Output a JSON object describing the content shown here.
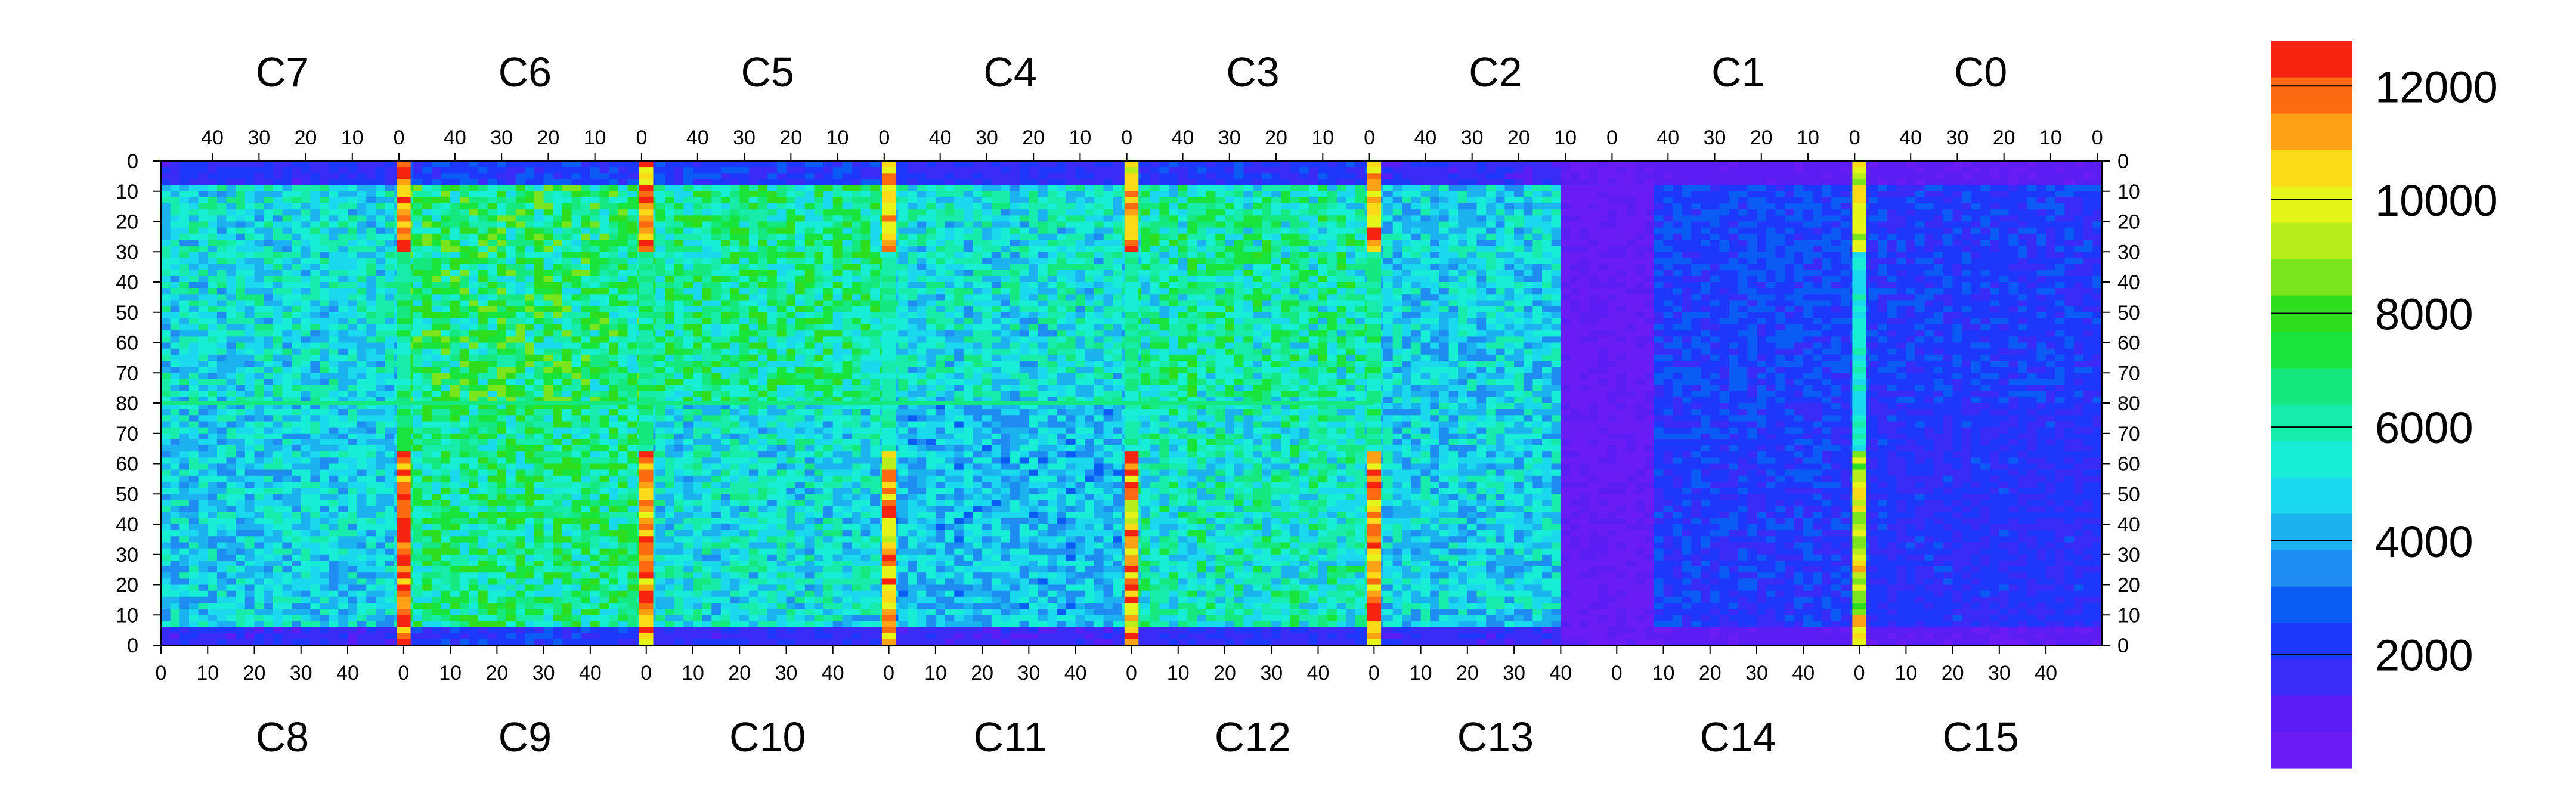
{
  "chart_data": {
    "type": "heatmap",
    "title": "",
    "top_chip_labels": [
      "C7",
      "C6",
      "C5",
      "C4",
      "C3",
      "C2",
      "C1",
      "C0"
    ],
    "bottom_chip_labels": [
      "C8",
      "C9",
      "C10",
      "C11",
      "C12",
      "C13",
      "C14",
      "C15"
    ],
    "top_x_ticks": [
      "40",
      "30",
      "20",
      "10",
      "0"
    ],
    "bottom_x_ticks": [
      "0",
      "10",
      "20",
      "30",
      "40"
    ],
    "left_y_ticks": [
      "0",
      "10",
      "20",
      "30",
      "40",
      "50",
      "60",
      "70",
      "80",
      "70",
      "60",
      "50",
      "40",
      "30",
      "20",
      "10",
      "0"
    ],
    "right_y_ticks": [
      "0",
      "10",
      "20",
      "30",
      "40",
      "50",
      "60",
      "70",
      "80",
      "70",
      "60",
      "50",
      "40",
      "30",
      "20",
      "10",
      "0"
    ],
    "chips_per_row": 8,
    "columns_per_chip": 52,
    "rows_per_half": 80,
    "colorbar": {
      "zmin": 0,
      "zmax": 12800,
      "tick_values": [
        2000,
        4000,
        6000,
        8000,
        10000,
        12000
      ],
      "tick_labels": [
        "2000",
        "4000",
        "6000",
        "8000",
        "10000",
        "12000"
      ],
      "palette": [
        "#6a1cf5",
        "#5a1ef5",
        "#3a2bf7",
        "#1d37fb",
        "#0a5cf5",
        "#1e8cf0",
        "#1cb2f0",
        "#1ad9ee",
        "#18edd6",
        "#17ecaa",
        "#15e87e",
        "#18e43c",
        "#2fdd1f",
        "#7ae41d",
        "#b7ee1c",
        "#e5f51a",
        "#fbda17",
        "#fca214",
        "#fc6a12",
        "#f5230f"
      ]
    },
    "regions": [
      {
        "name": "C7",
        "half": "top",
        "level": 5200
      },
      {
        "name": "C6",
        "half": "top",
        "level": 6800
      },
      {
        "name": "C5",
        "half": "top",
        "level": 6400
      },
      {
        "name": "C4",
        "half": "top",
        "level": 5200
      },
      {
        "name": "C3",
        "half": "top",
        "level": 6000
      },
      {
        "name": "C2",
        "half": "top",
        "level": 4800
      },
      {
        "name": "C1",
        "half": "top",
        "level": 2400
      },
      {
        "name": "C0",
        "half": "top",
        "level": 2200
      },
      {
        "name": "C8",
        "half": "bottom",
        "level": 4800
      },
      {
        "name": "C9",
        "half": "bottom",
        "level": 6400
      },
      {
        "name": "C10",
        "half": "bottom",
        "level": 5200
      },
      {
        "name": "C11",
        "half": "bottom",
        "level": 4400
      },
      {
        "name": "C12",
        "half": "bottom",
        "level": 5600
      },
      {
        "name": "C13",
        "half": "bottom",
        "level": 4800
      },
      {
        "name": "C14",
        "half": "bottom",
        "level": 2200
      },
      {
        "name": "C15",
        "half": "bottom",
        "level": 2000
      }
    ],
    "hot_columns": [
      {
        "boundary": "C7/C6",
        "level": 12000
      },
      {
        "boundary": "C6/C5",
        "level": 11500
      },
      {
        "boundary": "C5/C4",
        "level": 11000
      },
      {
        "boundary": "C4/C3",
        "level": 11000
      },
      {
        "boundary": "C3/C2",
        "level": 11500
      },
      {
        "boundary": "C1/C0",
        "level": 9500
      }
    ],
    "dead_regions": [
      {
        "label": "C2/C13 right edge + C1/C14 left edge",
        "level": 600
      }
    ],
    "grid": false,
    "legend": "colorbar-right"
  }
}
